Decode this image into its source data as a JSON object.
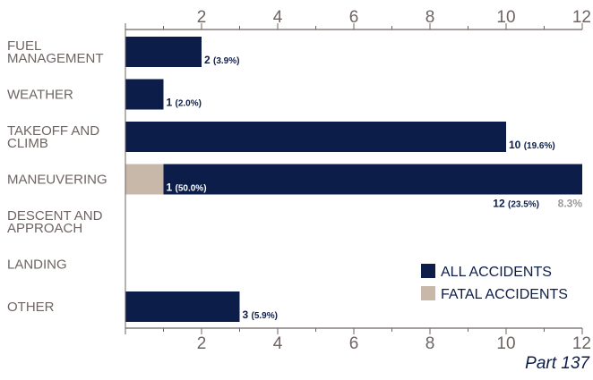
{
  "chart_data": {
    "type": "bar",
    "orientation": "horizontal",
    "categories": [
      [
        "FUEL",
        "MANAGEMENT"
      ],
      [
        "WEATHER"
      ],
      [
        "TAKEOFF AND",
        "CLIMB"
      ],
      [
        "MANEUVERING"
      ],
      [
        "DESCENT AND",
        "APPROACH"
      ],
      [
        "LANDING"
      ],
      [
        "OTHER"
      ]
    ],
    "series": [
      {
        "name": "ALL ACCIDENTS",
        "color": "#0c1d4a",
        "values": [
          2,
          1,
          10,
          12,
          0,
          0,
          3
        ],
        "labels": [
          {
            "count": "2",
            "pct": "(3.9%)"
          },
          {
            "count": "1",
            "pct": "(2.0%)"
          },
          {
            "count": "10",
            "pct": "(19.6%)"
          },
          {
            "count": "12",
            "pct": "(23.5%)"
          },
          null,
          null,
          {
            "count": "3",
            "pct": "(5.9%)"
          }
        ]
      },
      {
        "name": "FATAL ACCIDENTS",
        "color": "#c8b8aa",
        "values": [
          0,
          0,
          0,
          1,
          0,
          0,
          0
        ],
        "labels": [
          null,
          null,
          null,
          {
            "count": "1",
            "pct": "(50.0%)"
          },
          null,
          null,
          null
        ]
      }
    ],
    "extra_labels": [
      {
        "category_index": 3,
        "text": "8.3%"
      }
    ],
    "xlim": [
      0,
      12
    ],
    "xticks": [
      2,
      4,
      6,
      8,
      10,
      12
    ],
    "axes_top_and_bottom": true,
    "grid": false,
    "legend_position": "bottom-right",
    "label_color_dark": "#0c1d4a",
    "label_color_light": "#ffffff",
    "label_color_grey": "#9a9a9a",
    "footer_note": "Part 137"
  }
}
